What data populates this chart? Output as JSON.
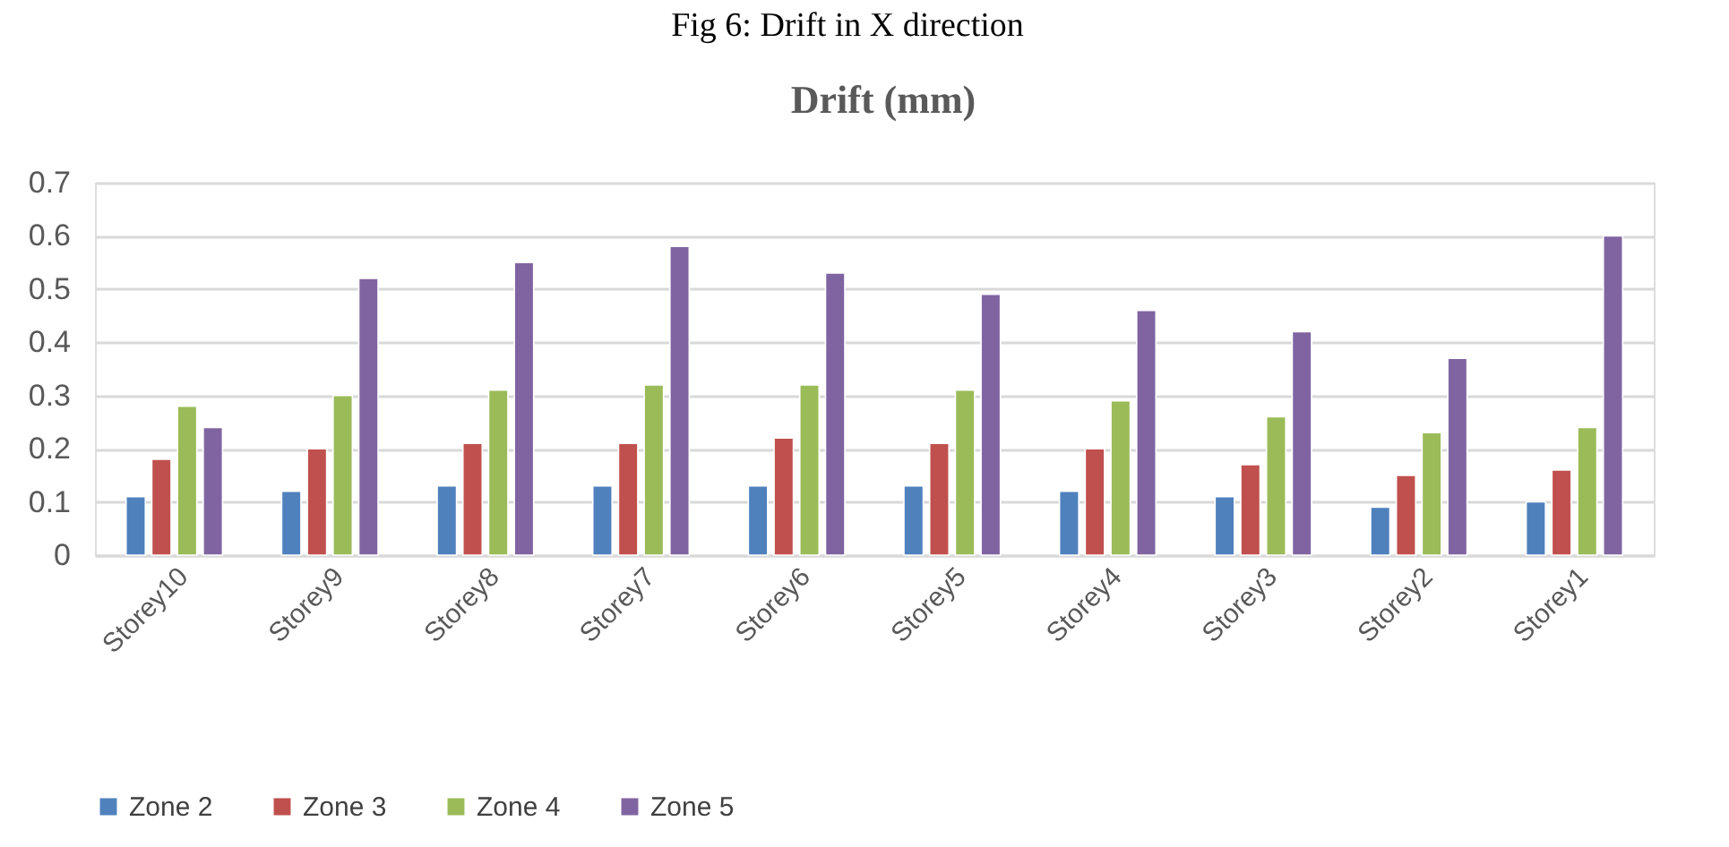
{
  "chart_data": {
    "type": "bar",
    "title": "Drift (mm)",
    "annotations": [
      "Fig 6: Drift in X direction"
    ],
    "categories": [
      "Storey10",
      "Storey9",
      "Storey8",
      "Storey7",
      "Storey6",
      "Storey5",
      "Storey4",
      "Storey3",
      "Storey2",
      "Storey1"
    ],
    "series": [
      {
        "name": "Zone 2",
        "color": "#4f81bd",
        "values": [
          0.11,
          0.12,
          0.13,
          0.13,
          0.13,
          0.13,
          0.12,
          0.11,
          0.09,
          0.1
        ]
      },
      {
        "name": "Zone 3",
        "color": "#c0504d",
        "values": [
          0.18,
          0.2,
          0.21,
          0.21,
          0.22,
          0.21,
          0.2,
          0.17,
          0.15,
          0.16
        ]
      },
      {
        "name": "Zone 4",
        "color": "#9bbb59",
        "values": [
          0.28,
          0.3,
          0.31,
          0.32,
          0.32,
          0.31,
          0.29,
          0.26,
          0.23,
          0.24
        ]
      },
      {
        "name": "Zone 5",
        "color": "#8064a2",
        "values": [
          0.24,
          0.52,
          0.55,
          0.58,
          0.53,
          0.49,
          0.46,
          0.42,
          0.37,
          0.6
        ]
      }
    ],
    "ylim": [
      0,
      0.7
    ],
    "yticks": [
      {
        "value": 0,
        "label": "0"
      },
      0.1,
      0.2,
      0.3,
      0.4,
      0.5,
      0.6,
      0.7
    ],
    "grid": "y",
    "legend": "bottom"
  }
}
